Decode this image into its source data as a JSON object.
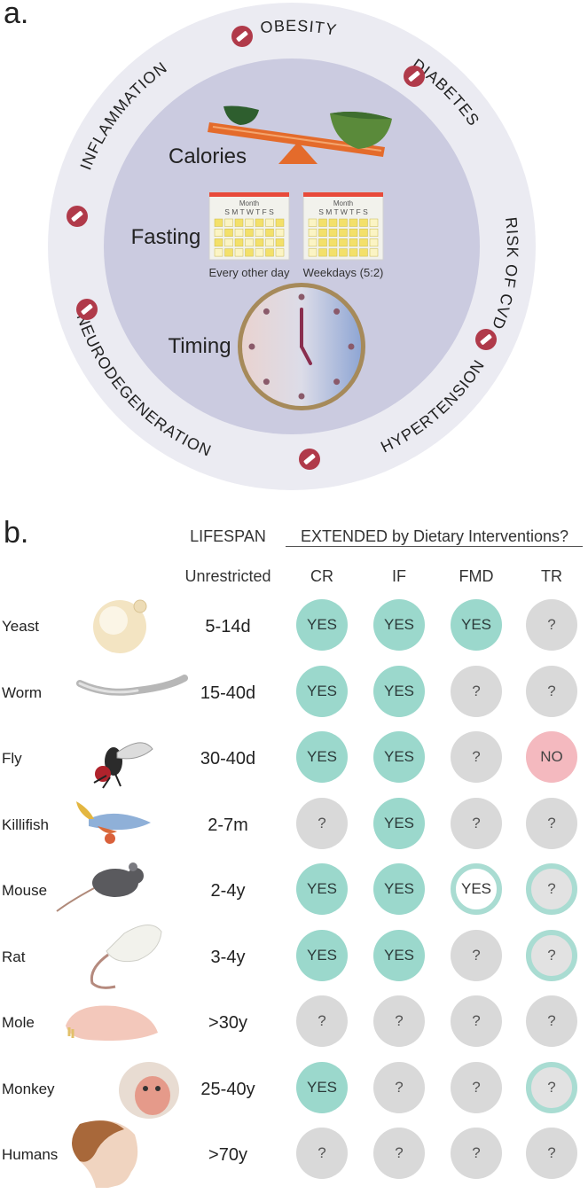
{
  "panel_a": {
    "letter": "a.",
    "inner_labels": {
      "calories": "Calories",
      "fasting": "Fasting",
      "timing": "Timing"
    },
    "calendars": [
      {
        "month": "Month",
        "days": "S M T W T F S",
        "caption": "Every other day"
      },
      {
        "month": "Month",
        "days": "S M T W T F S",
        "caption": "Weekdays (5:2)"
      }
    ],
    "conditions": [
      "OBESITY",
      "DIABETES",
      "RISK OF CVD",
      "HYPERTENSION",
      "NEURODEGENERATION",
      "INFLAMMATION"
    ],
    "colors": {
      "outer_ring": "#ebebf2",
      "inner_disk": "#cbcbe0",
      "no_sign": "#b03a4a",
      "scale": "#e46b2b",
      "bowl": "#5a8a3a",
      "calendar_header": "#e84a3a",
      "calendar_cell": "#f3e06a",
      "clock_rim": "#a68a5a"
    }
  },
  "panel_b": {
    "letter": "b.",
    "lifespan_header": "LIFESPAN",
    "unrestricted_header": "Unrestricted",
    "extended_header": "EXTENDED by Dietary Interventions?",
    "columns": [
      "CR",
      "IF",
      "FMD",
      "TR"
    ],
    "rows": [
      {
        "species": "Yeast",
        "lifespan": "5-14d",
        "values": [
          "YES",
          "YES",
          "YES",
          "?"
        ],
        "styles": [
          "yes",
          "yes",
          "yes",
          "unknown"
        ]
      },
      {
        "species": "Worm",
        "lifespan": "15-40d",
        "values": [
          "YES",
          "YES",
          "?",
          "?"
        ],
        "styles": [
          "yes",
          "yes",
          "unknown",
          "unknown"
        ]
      },
      {
        "species": "Fly",
        "lifespan": "30-40d",
        "values": [
          "YES",
          "YES",
          "?",
          "NO"
        ],
        "styles": [
          "yes",
          "yes",
          "unknown",
          "no"
        ]
      },
      {
        "species": "Killifish",
        "lifespan": "2-7m",
        "values": [
          "?",
          "YES",
          "?",
          "?"
        ],
        "styles": [
          "unknown",
          "yes",
          "unknown",
          "unknown"
        ]
      },
      {
        "species": "Mouse",
        "lifespan": "2-4y",
        "values": [
          "YES",
          "YES",
          "YES",
          "?"
        ],
        "styles": [
          "yes",
          "yes",
          "yes-ring",
          "unknown-ring"
        ]
      },
      {
        "species": "Rat",
        "lifespan": "3-4y",
        "values": [
          "YES",
          "YES",
          "?",
          "?"
        ],
        "styles": [
          "yes",
          "yes",
          "unknown",
          "unknown-ring"
        ]
      },
      {
        "species": "Mole",
        "lifespan": ">30y",
        "values": [
          "?",
          "?",
          "?",
          "?"
        ],
        "styles": [
          "unknown",
          "unknown",
          "unknown",
          "unknown"
        ]
      },
      {
        "species": "Monkey",
        "lifespan": "25-40y",
        "values": [
          "YES",
          "?",
          "?",
          "?"
        ],
        "styles": [
          "yes",
          "unknown",
          "unknown",
          "unknown-ring"
        ]
      },
      {
        "species": "Humans",
        "lifespan": ">70y",
        "values": [
          "?",
          "?",
          "?",
          "?"
        ],
        "styles": [
          "unknown",
          "unknown",
          "unknown",
          "unknown"
        ]
      }
    ],
    "colors": {
      "yes": "#9bd8cc",
      "unknown": "#d9d9d9",
      "no": "#f4b9bf",
      "ring": "#a9dcd2"
    }
  }
}
